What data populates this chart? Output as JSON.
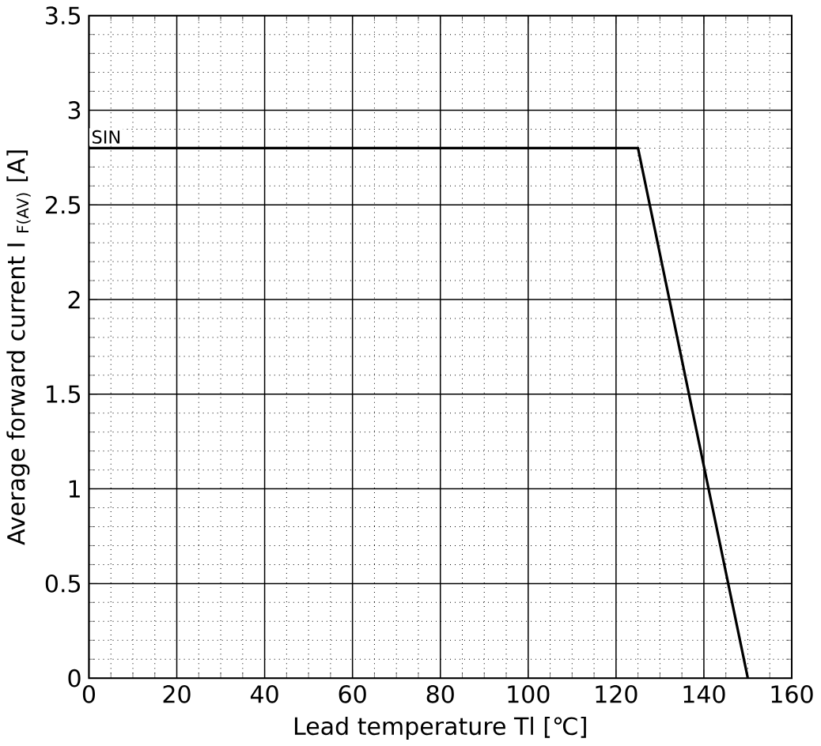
{
  "chart_data": {
    "type": "line",
    "xlabel": "Lead temperature  Tl    [℃]",
    "ylabel": "Average forward current  I $_{F(AV)}$    [A]",
    "x": [
      0,
      125,
      150
    ],
    "series": [
      {
        "color": "#000000",
        "values": [
          2.8,
          2.8,
          0
        ]
      }
    ],
    "annotations": [
      {
        "text": "SIN",
        "x": 0,
        "y": 2.8
      }
    ],
    "xlim": [
      0,
      160
    ],
    "ylim": [
      0,
      3.5
    ],
    "xticks": [
      0,
      20,
      40,
      60,
      80,
      100,
      120,
      140,
      160
    ],
    "yticks": [
      0,
      0.5,
      1,
      1.5,
      2,
      2.5,
      3,
      3.5
    ],
    "grid": true,
    "marker": "none",
    "line_style": "solid"
  }
}
